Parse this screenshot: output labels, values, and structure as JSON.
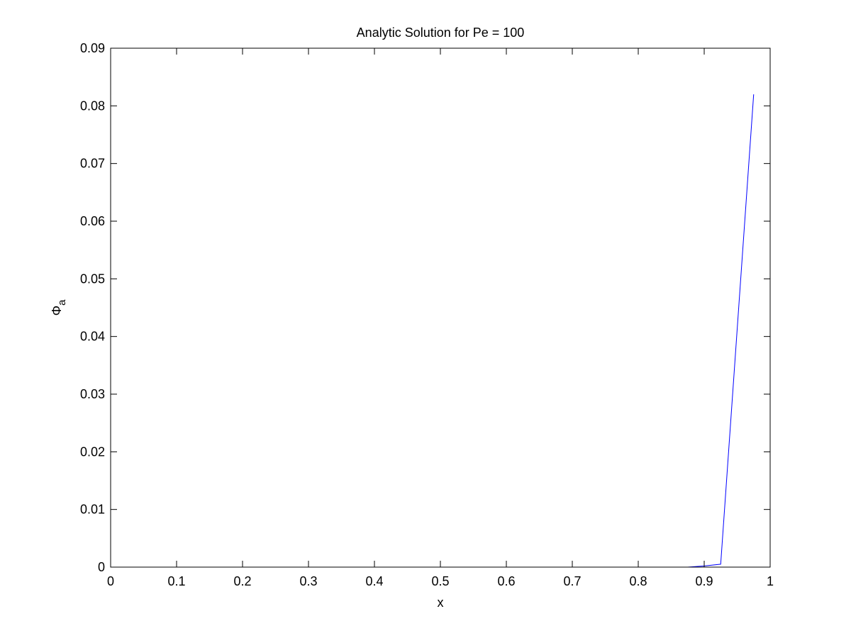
{
  "chart_data": {
    "type": "line",
    "title": "Analytic Solution for Pe = 100",
    "xlabel": "x",
    "ylabel": {
      "main": "Φ",
      "subscript": "a"
    },
    "xlim": [
      0,
      1
    ],
    "ylim": [
      0,
      0.09
    ],
    "xticks": [
      0,
      0.1,
      0.2,
      0.3,
      0.4,
      0.5,
      0.6,
      0.7,
      0.8,
      0.9,
      1
    ],
    "xtick_labels": [
      "0",
      "0.1",
      "0.2",
      "0.3",
      "0.4",
      "0.5",
      "0.6",
      "0.7",
      "0.8",
      "0.9",
      "1"
    ],
    "yticks": [
      0,
      0.01,
      0.02,
      0.03,
      0.04,
      0.05,
      0.06,
      0.07,
      0.08,
      0.09
    ],
    "ytick_labels": [
      "0",
      "0.01",
      "0.02",
      "0.03",
      "0.04",
      "0.05",
      "0.06",
      "0.07",
      "0.08",
      "0.09"
    ],
    "grid": false,
    "series": [
      {
        "color": "#0000ff",
        "x": [
          0.6,
          0.65,
          0.7,
          0.75,
          0.8,
          0.85,
          0.875,
          0.9,
          0.925,
          0.975
        ],
        "y": [
          0,
          0,
          0,
          0,
          0,
          0,
          0,
          0.0002,
          0.0005,
          0.082
        ]
      }
    ],
    "axes_color": "#000000"
  }
}
